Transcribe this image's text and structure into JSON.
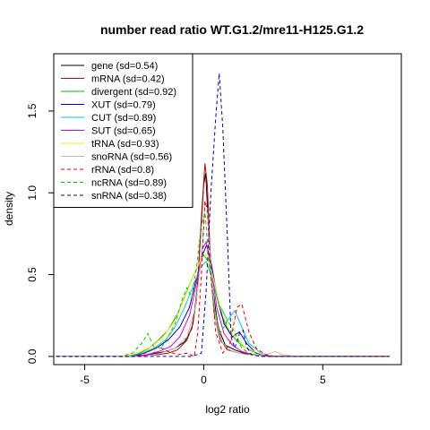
{
  "chart_data": {
    "type": "line",
    "title": "number read ratio WT.G1.2/mre11-H125.G1.2",
    "xlabel": "log2 ratio",
    "ylabel": "density",
    "xlim": [
      -6.3,
      8.3
    ],
    "ylim": [
      -0.05,
      1.85
    ],
    "x_ticks": [
      -5,
      0,
      5
    ],
    "x_tick_labels": [
      "-5",
      "0",
      "5"
    ],
    "y_ticks": [
      0.0,
      0.5,
      1.0,
      1.5
    ],
    "y_tick_labels": [
      "0.0",
      "0.5",
      "1.0",
      "1.5"
    ],
    "grid": false,
    "legend_position": "top-left",
    "series": [
      {
        "name": "gene (sd=0.54)",
        "color": "#000000",
        "dash": "solid",
        "points": [
          [
            -6.2,
            0
          ],
          [
            -3,
            0
          ],
          [
            -2.4,
            0.01
          ],
          [
            -2.0,
            0.02
          ],
          [
            -1.6,
            0.03
          ],
          [
            -1.2,
            0.05
          ],
          [
            -0.8,
            0.09
          ],
          [
            -0.5,
            0.17
          ],
          [
            -0.3,
            0.35
          ],
          [
            -0.15,
            0.7
          ],
          [
            0.0,
            1.05
          ],
          [
            0.08,
            1.12
          ],
          [
            0.2,
            0.8
          ],
          [
            0.35,
            0.45
          ],
          [
            0.6,
            0.18
          ],
          [
            0.9,
            0.07
          ],
          [
            1.3,
            0.04
          ],
          [
            1.7,
            0.02
          ],
          [
            2.2,
            0.01
          ],
          [
            3,
            0
          ],
          [
            7.8,
            0
          ]
        ]
      },
      {
        "name": "mRNA (sd=0.42)",
        "color": "#cc0000",
        "dash": "solid",
        "points": [
          [
            -6.2,
            0
          ],
          [
            -3,
            0
          ],
          [
            -2.0,
            0.01
          ],
          [
            -1.5,
            0.02
          ],
          [
            -1.1,
            0.04
          ],
          [
            -0.7,
            0.1
          ],
          [
            -0.45,
            0.2
          ],
          [
            -0.25,
            0.45
          ],
          [
            -0.1,
            0.85
          ],
          [
            0.05,
            1.18
          ],
          [
            0.15,
            1.05
          ],
          [
            0.28,
            0.6
          ],
          [
            0.45,
            0.25
          ],
          [
            0.7,
            0.1
          ],
          [
            1.0,
            0.04
          ],
          [
            1.5,
            0.02
          ],
          [
            2.2,
            0.01
          ],
          [
            3,
            0
          ],
          [
            7.8,
            0
          ]
        ]
      },
      {
        "name": "divergent (sd=0.92)",
        "color": "#00bb00",
        "dash": "solid",
        "points": [
          [
            -6.2,
            0
          ],
          [
            -3.2,
            0
          ],
          [
            -2.7,
            0.02
          ],
          [
            -2.3,
            0.05
          ],
          [
            -1.9,
            0.1
          ],
          [
            -1.5,
            0.16
          ],
          [
            -1.1,
            0.26
          ],
          [
            -0.7,
            0.4
          ],
          [
            -0.35,
            0.52
          ],
          [
            0.0,
            0.62
          ],
          [
            0.2,
            0.58
          ],
          [
            0.45,
            0.42
          ],
          [
            0.75,
            0.25
          ],
          [
            1.1,
            0.14
          ],
          [
            1.5,
            0.08
          ],
          [
            1.9,
            0.04
          ],
          [
            2.4,
            0.01
          ],
          [
            3,
            0
          ],
          [
            7.8,
            0
          ]
        ]
      },
      {
        "name": "XUT (sd=0.79)",
        "color": "#0000cc",
        "dash": "solid",
        "points": [
          [
            -6.2,
            0
          ],
          [
            -3.0,
            0
          ],
          [
            -2.5,
            0.02
          ],
          [
            -2.0,
            0.05
          ],
          [
            -1.5,
            0.1
          ],
          [
            -1.0,
            0.18
          ],
          [
            -0.6,
            0.3
          ],
          [
            -0.3,
            0.48
          ],
          [
            -0.05,
            0.62
          ],
          [
            0.12,
            0.68
          ],
          [
            0.3,
            0.58
          ],
          [
            0.55,
            0.38
          ],
          [
            0.85,
            0.2
          ],
          [
            1.2,
            0.12
          ],
          [
            1.5,
            0.15
          ],
          [
            1.8,
            0.08
          ],
          [
            2.2,
            0.02
          ],
          [
            2.8,
            0
          ],
          [
            7.8,
            0
          ]
        ]
      },
      {
        "name": "CUT (sd=0.89)",
        "color": "#00cccc",
        "dash": "solid",
        "points": [
          [
            -6.2,
            0
          ],
          [
            -3.2,
            0
          ],
          [
            -2.6,
            0.02
          ],
          [
            -2.1,
            0.05
          ],
          [
            -1.6,
            0.1
          ],
          [
            -1.2,
            0.18
          ],
          [
            -0.8,
            0.3
          ],
          [
            -0.4,
            0.45
          ],
          [
            -0.1,
            0.55
          ],
          [
            0.1,
            0.58
          ],
          [
            0.35,
            0.48
          ],
          [
            0.65,
            0.32
          ],
          [
            1.0,
            0.22
          ],
          [
            1.3,
            0.28
          ],
          [
            1.6,
            0.18
          ],
          [
            1.9,
            0.08
          ],
          [
            2.4,
            0.02
          ],
          [
            3,
            0
          ],
          [
            7.8,
            0
          ]
        ]
      },
      {
        "name": "SUT (sd=0.65)",
        "color": "#dd00dd",
        "dash": "solid",
        "points": [
          [
            -6.2,
            0
          ],
          [
            -3.0,
            0
          ],
          [
            -2.4,
            0.01
          ],
          [
            -1.9,
            0.03
          ],
          [
            -1.4,
            0.06
          ],
          [
            -1.0,
            0.12
          ],
          [
            -0.6,
            0.25
          ],
          [
            -0.3,
            0.45
          ],
          [
            -0.05,
            0.66
          ],
          [
            0.1,
            0.7
          ],
          [
            0.3,
            0.55
          ],
          [
            0.55,
            0.3
          ],
          [
            0.85,
            0.14
          ],
          [
            1.2,
            0.07
          ],
          [
            1.6,
            0.03
          ],
          [
            2.1,
            0.01
          ],
          [
            2.8,
            0
          ],
          [
            7.8,
            0
          ]
        ]
      },
      {
        "name": "tRNA (sd=0.93)",
        "color": "#ffee00",
        "dash": "solid",
        "points": [
          [
            -6.2,
            0
          ],
          [
            -3.5,
            0
          ],
          [
            -2.8,
            0.02
          ],
          [
            -2.2,
            0.06
          ],
          [
            -1.7,
            0.12
          ],
          [
            -1.2,
            0.22
          ],
          [
            -0.8,
            0.36
          ],
          [
            -0.4,
            0.5
          ],
          [
            -0.1,
            0.6
          ],
          [
            0.1,
            0.62
          ],
          [
            0.4,
            0.48
          ],
          [
            0.7,
            0.3
          ],
          [
            1.0,
            0.18
          ],
          [
            1.4,
            0.1
          ],
          [
            1.8,
            0.05
          ],
          [
            2.3,
            0.02
          ],
          [
            3,
            0
          ],
          [
            7.8,
            0
          ]
        ]
      },
      {
        "name": "snoRNA (sd=0.56)",
        "color": "#bbbbbb",
        "dash": "solid",
        "points": [
          [
            -6.2,
            0
          ],
          [
            -2.5,
            0
          ],
          [
            -1.8,
            0.02
          ],
          [
            -1.2,
            0.05
          ],
          [
            -0.7,
            0.12
          ],
          [
            -0.35,
            0.3
          ],
          [
            -0.1,
            0.6
          ],
          [
            0.05,
            0.95
          ],
          [
            0.15,
            0.9
          ],
          [
            0.3,
            0.55
          ],
          [
            0.5,
            0.22
          ],
          [
            0.8,
            0.08
          ],
          [
            1.2,
            0.03
          ],
          [
            1.8,
            0.01
          ],
          [
            2.6,
            0.01
          ],
          [
            3.0,
            0.03
          ],
          [
            3.3,
            0.01
          ],
          [
            4,
            0
          ],
          [
            7.8,
            0
          ]
        ]
      },
      {
        "name": "rRNA (sd=0.8)",
        "color": "#ee0000",
        "dash": "dashed",
        "points": [
          [
            -6.2,
            0
          ],
          [
            -2.8,
            0
          ],
          [
            -2.3,
            0.03
          ],
          [
            -1.9,
            0.06
          ],
          [
            -1.5,
            0.03
          ],
          [
            -1.1,
            0.01
          ],
          [
            -0.7,
            0.02
          ],
          [
            -0.4,
            0
          ],
          [
            -0.25,
            0.15
          ],
          [
            -0.1,
            0.5
          ],
          [
            0.05,
            0.95
          ],
          [
            0.15,
            0.9
          ],
          [
            0.3,
            0.5
          ],
          [
            0.5,
            0.15
          ],
          [
            0.8,
            0.02
          ],
          [
            1.1,
            0.08
          ],
          [
            1.4,
            0.3
          ],
          [
            1.6,
            0.32
          ],
          [
            1.9,
            0.15
          ],
          [
            2.2,
            0.05
          ],
          [
            2.6,
            0.01
          ],
          [
            3,
            0
          ],
          [
            7.8,
            0
          ]
        ]
      },
      {
        "name": "ncRNA (sd=0.89)",
        "color": "#00cc00",
        "dash": "dashed",
        "points": [
          [
            -6.2,
            0
          ],
          [
            -3.5,
            0
          ],
          [
            -3.0,
            0.02
          ],
          [
            -2.6,
            0.08
          ],
          [
            -2.35,
            0.14
          ],
          [
            -2.1,
            0.06
          ],
          [
            -1.8,
            0.05
          ],
          [
            -1.5,
            0.12
          ],
          [
            -1.2,
            0.2
          ],
          [
            -0.9,
            0.35
          ],
          [
            -0.7,
            0.42
          ],
          [
            -0.5,
            0.36
          ],
          [
            -0.3,
            0.55
          ],
          [
            -0.1,
            0.8
          ],
          [
            0.05,
            0.88
          ],
          [
            0.2,
            0.62
          ],
          [
            0.4,
            0.32
          ],
          [
            0.7,
            0.14
          ],
          [
            1.0,
            0.22
          ],
          [
            1.3,
            0.15
          ],
          [
            1.6,
            0.05
          ],
          [
            2.0,
            0.01
          ],
          [
            2.6,
            0
          ],
          [
            7.8,
            0
          ]
        ]
      },
      {
        "name": "snRNA (sd=0.38)",
        "color": "#0000cc",
        "dash": "dashed",
        "points": [
          [
            -6.2,
            0
          ],
          [
            -0.5,
            0
          ],
          [
            -0.3,
            0.01
          ],
          [
            -0.1,
            0.02
          ],
          [
            0.1,
            0.4
          ],
          [
            0.3,
            1.0
          ],
          [
            0.5,
            1.45
          ],
          [
            0.65,
            1.73
          ],
          [
            0.8,
            1.4
          ],
          [
            1.0,
            0.7
          ],
          [
            1.15,
            0.12
          ],
          [
            1.3,
            0.05
          ],
          [
            1.5,
            0.14
          ],
          [
            1.65,
            0.16
          ],
          [
            1.8,
            0.06
          ],
          [
            2.0,
            0.01
          ],
          [
            2.4,
            0
          ],
          [
            7.8,
            0
          ]
        ]
      }
    ]
  }
}
